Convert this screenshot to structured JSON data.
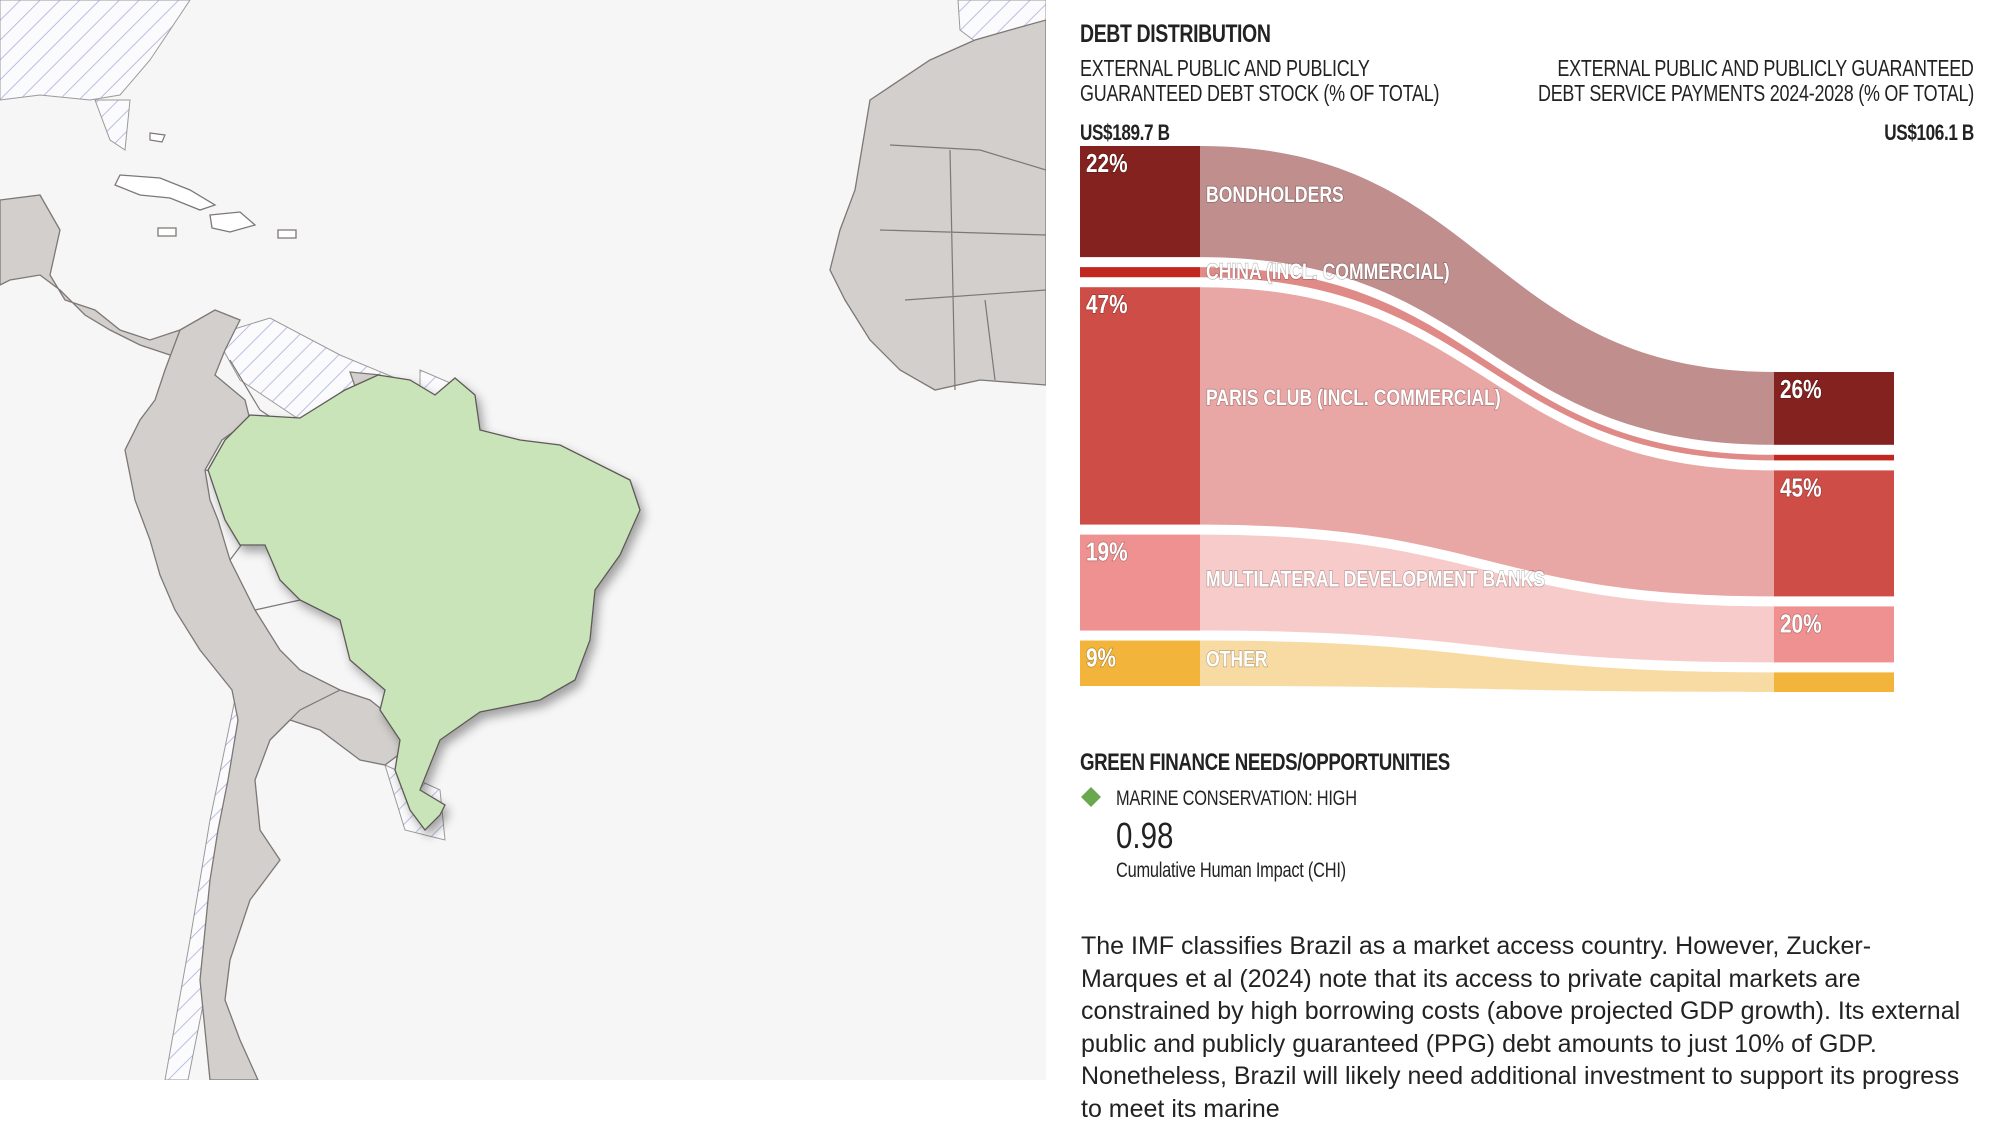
{
  "debt_distribution": {
    "title": "DEBT DISTRIBUTION",
    "left_subtitle_line1": "EXTERNAL PUBLIC AND PUBLICLY",
    "left_subtitle_line2": "GUARANTEED DEBT STOCK (% OF TOTAL)",
    "right_subtitle_line1": "EXTERNAL PUBLIC AND PUBLICLY GUARANTEED",
    "right_subtitle_line2": "DEBT SERVICE PAYMENTS 2024-2028 (% OF TOTAL)",
    "left_total": "US$189.7 B",
    "right_total": "US$106.1 B"
  },
  "chart_data": {
    "type": "sankey",
    "left_label": "External public and publicly guaranteed debt stock (% of total)",
    "right_label": "External public and publicly guaranteed debt service payments 2024-2028 (% of total)",
    "left_total": "US$189.7 B",
    "right_total": "US$106.1 B",
    "categories": [
      "BONDHOLDERS",
      "CHINA (INCL. COMMERCIAL)",
      "PARIS CLUB (INCL. COMMERCIAL)",
      "MULTILATERAL DEVELOPMENT BANKS",
      "OTHER"
    ],
    "series": [
      {
        "name": "Debt stock",
        "values": [
          22,
          2,
          47,
          19,
          9
        ]
      },
      {
        "name": "Debt service payments 2024-2028",
        "values": [
          26,
          2,
          45,
          20,
          7
        ]
      }
    ],
    "left_labels": [
      "22%",
      "",
      "47%",
      "19%",
      "9%"
    ],
    "right_labels": [
      "26%",
      "",
      "45%",
      "20%",
      ""
    ],
    "colors": {
      "node": [
        "#84221f",
        "#c1271f",
        "#cf4d47",
        "#ee9190",
        "#f2b43a"
      ],
      "flow": [
        "#bf8e8d",
        "#e08a87",
        "#e8a6a5",
        "#f6cbca",
        "#f8dba3"
      ]
    }
  },
  "green_finance": {
    "title": "GREEN FINANCE NEEDS/OPPORTUNITIES",
    "item_label": "MARINE CONSERVATION: HIGH",
    "value": "0.98",
    "value_caption": "Cumulative Human Impact (CHI)",
    "diamond_color": "#6aa84f"
  },
  "body_text": "The IMF classifies Brazil as a market access country. However, Zucker-Marques et al (2024) note that its access to private capital markets are constrained by high borrowing costs (above projected GDP growth). Its external public and publicly guaranteed (PPG) debt amounts to just 10% of GDP. Nonetheless, Brazil will likely need additional investment to support its progress to meet its marine",
  "map": {
    "highlight_color": "#c8e4b8",
    "land_color": "#d3cfcd"
  }
}
